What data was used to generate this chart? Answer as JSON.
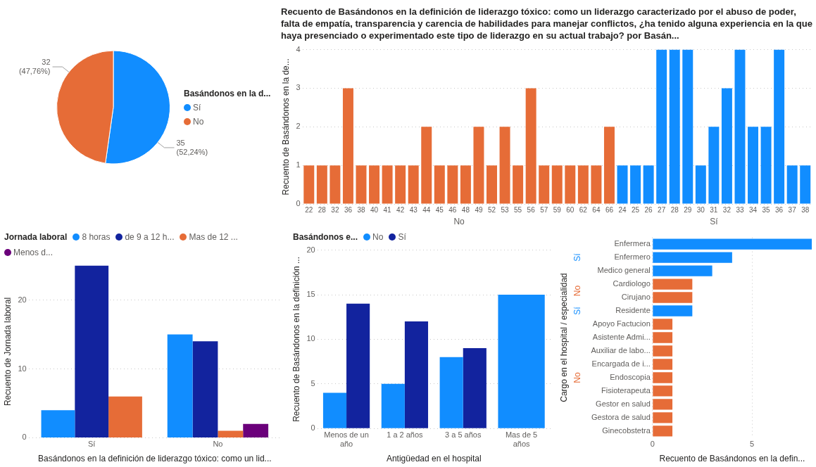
{
  "chart_data": [
    {
      "type": "pie",
      "categories": [
        "Sí",
        "No"
      ],
      "values": [
        35,
        32
      ],
      "colors": [
        "#118dff",
        "#e66c37"
      ],
      "value_labels": [
        "35 (52,24%)",
        "32 (47,76%)"
      ],
      "legend": "right",
      "legend_title": "Basándonos en la d..."
    },
    {
      "type": "bar",
      "title": "Recuento de Basándonos en la definición de liderazgo tóxico: como un liderazgo caracterizado por el abuso de poder, falta de empatía, transparencia y carencia de habilidades para manejar conflictos, ¿ha tenido alguna experiencia en la que haya presenciado o experimentado este tipo de liderazgo en su actual trabajo? por Basán...",
      "ylabel": "Recuento de Basándonos en la de...",
      "categories": [
        "22",
        "28",
        "32",
        "36",
        "38",
        "40",
        "41",
        "42",
        "43",
        "44",
        "45",
        "46",
        "48",
        "49",
        "52",
        "53",
        "55",
        "56",
        "57",
        "59",
        "60",
        "62",
        "64",
        "66",
        "24",
        "25",
        "26",
        "27",
        "28",
        "29",
        "30",
        "31",
        "32",
        "33",
        "34",
        "35",
        "36",
        "37",
        "38"
      ],
      "values": [
        1,
        1,
        1,
        3,
        1,
        1,
        1,
        1,
        1,
        2,
        1,
        1,
        1,
        2,
        1,
        2,
        1,
        3,
        1,
        1,
        1,
        1,
        1,
        2,
        1,
        1,
        1,
        4,
        4,
        4,
        1,
        2,
        3,
        4,
        2,
        2,
        4,
        1,
        1
      ],
      "colors": [
        "#e66c37",
        "#e66c37",
        "#e66c37",
        "#e66c37",
        "#e66c37",
        "#e66c37",
        "#e66c37",
        "#e66c37",
        "#e66c37",
        "#e66c37",
        "#e66c37",
        "#e66c37",
        "#e66c37",
        "#e66c37",
        "#e66c37",
        "#e66c37",
        "#e66c37",
        "#e66c37",
        "#e66c37",
        "#e66c37",
        "#e66c37",
        "#e66c37",
        "#e66c37",
        "#e66c37",
        "#118dff",
        "#118dff",
        "#118dff",
        "#118dff",
        "#118dff",
        "#118dff",
        "#118dff",
        "#118dff",
        "#118dff",
        "#118dff",
        "#118dff",
        "#118dff",
        "#118dff",
        "#118dff",
        "#118dff"
      ],
      "annotations": [
        "No",
        "Sí"
      ],
      "ylim": [
        0,
        4
      ],
      "yticks": [
        0,
        1,
        2,
        3,
        4
      ],
      "grid": "y",
      "legend": false
    },
    {
      "type": "bar",
      "xlabel": "Basándonos en la definición de liderazgo tóxico: como un lid...",
      "ylabel": "Recuento de Jornada laboral",
      "legend_title": "Jornada laboral",
      "legend": "top left",
      "categories": [
        "Sí",
        "No"
      ],
      "series": [
        {
          "name": "8 horas",
          "color": "#118dff",
          "values": [
            4,
            15
          ]
        },
        {
          "name": "de 9 a 12 h...",
          "color": "#12239e",
          "values": [
            25,
            14
          ]
        },
        {
          "name": "Mas de 12 ...",
          "color": "#e66c37",
          "values": [
            6,
            1
          ]
        },
        {
          "name": "Menos d...",
          "color": "#6b007b",
          "values": [
            null,
            2
          ]
        }
      ],
      "ylim": [
        0,
        25
      ],
      "yticks": [
        0,
        10,
        20
      ],
      "grid": "y"
    },
    {
      "type": "bar",
      "xlabel": "Antigüedad en el hospital",
      "ylabel": "Recuento de Basándonos en la definición ...",
      "legend_title": "Basándonos e...",
      "legend": "top left",
      "categories": [
        "Menos de un año",
        "1 a 2 años",
        "3 a 5 años",
        "Mas de 5 años"
      ],
      "series": [
        {
          "name": "No",
          "color": "#118dff",
          "values": [
            4,
            5,
            8,
            15
          ]
        },
        {
          "name": "Sí",
          "color": "#12239e",
          "values": [
            14,
            12,
            9,
            null
          ]
        }
      ],
      "ylim": [
        0,
        20
      ],
      "yticks": [
        0,
        5,
        10,
        15,
        20
      ],
      "grid": "y"
    },
    {
      "type": "bar",
      "orientation": "horizontal",
      "xlabel": "Recuento de Basándonos en la defin...",
      "ylabel": "Cargo en el hospital / especialidad",
      "categories": [
        "Enfermera",
        "Enfermero",
        "Medico general",
        "Cardiologo",
        "Cirujano",
        "Residente",
        "Apoyo Factucion",
        "Asistente Admi...",
        "Auxiliar de labo...",
        "Encargada de i...",
        "Endoscopia",
        "Fisioterapeuta",
        "Gestor en salud",
        "Gestora de salud",
        "Ginecobstetra"
      ],
      "series": [
        {
          "name": "Sí",
          "color": "#118dff",
          "values": [
            8,
            4,
            3,
            null,
            null,
            2,
            null,
            null,
            null,
            null,
            null,
            null,
            null,
            null,
            null
          ]
        },
        {
          "name": "No",
          "color": "#e66c37",
          "values": [
            null,
            null,
            null,
            2,
            2,
            null,
            1,
            1,
            1,
            1,
            1,
            1,
            1,
            1,
            1
          ]
        }
      ],
      "xlim": [
        0,
        8
      ],
      "xticks": [
        0,
        5
      ],
      "grid": "x",
      "legend": false
    }
  ]
}
